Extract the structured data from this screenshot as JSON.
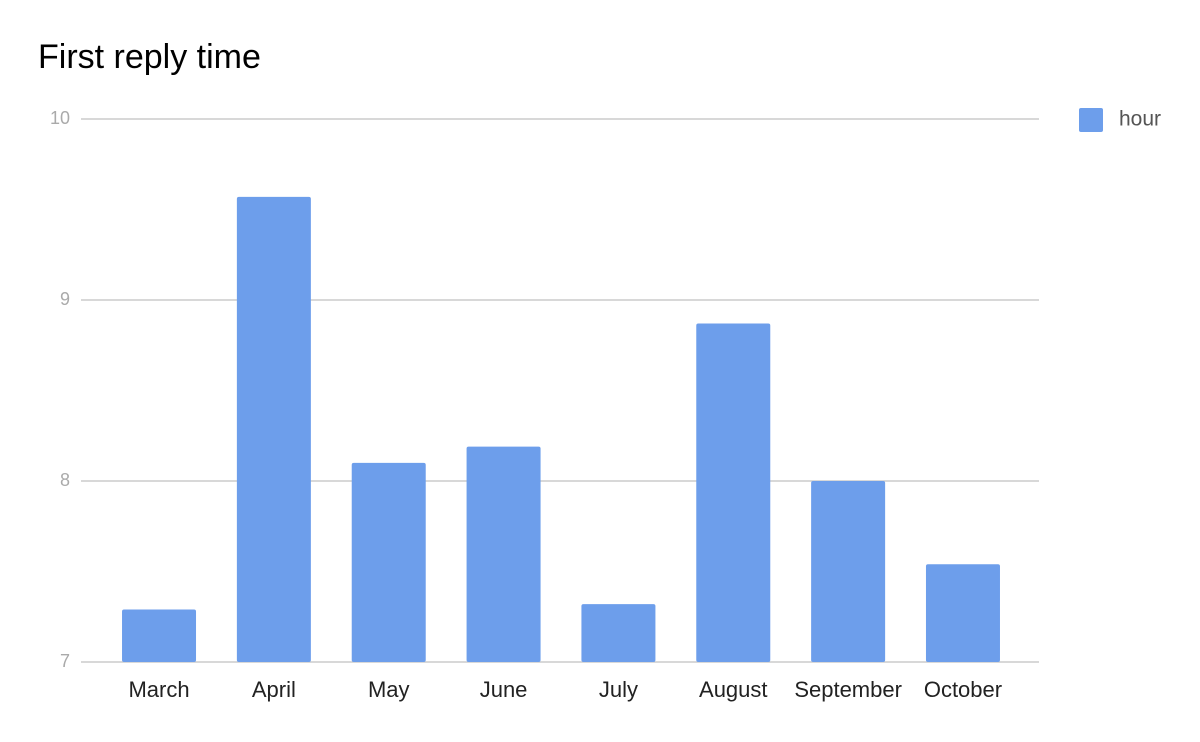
{
  "chart_data": {
    "type": "bar",
    "title": "First reply time",
    "categories": [
      "March",
      "April",
      "May",
      "June",
      "July",
      "August",
      "September",
      "October"
    ],
    "series": [
      {
        "name": "hour",
        "color": "#6d9eeb",
        "values": [
          7.29,
          9.57,
          8.1,
          8.19,
          7.32,
          8.87,
          8.0,
          7.54
        ]
      }
    ],
    "ylim": [
      7,
      10
    ],
    "yticks": [
      7,
      8,
      9,
      10
    ],
    "grid": true,
    "legend": "right"
  }
}
